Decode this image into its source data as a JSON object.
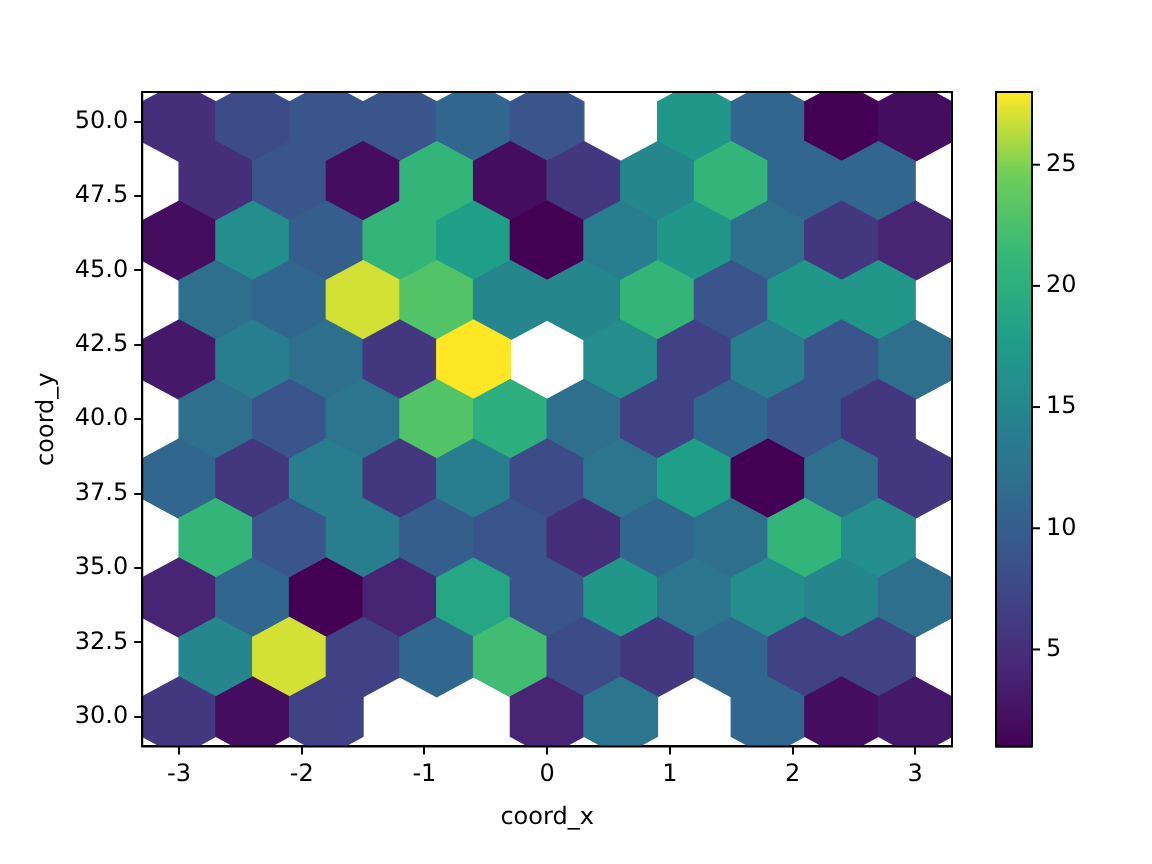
{
  "chart_data": {
    "type": "scatter",
    "xlabel": "coord_x",
    "ylabel": "coord_y",
    "xlim": [
      -3.3,
      3.3
    ],
    "ylim": [
      29,
      51
    ],
    "xticks": [
      -3,
      -2,
      -1,
      0,
      1,
      2,
      3
    ],
    "yticks": [
      {
        "value": 30,
        "label": "30.0"
      },
      {
        "value": 32.5,
        "label": "32.5"
      },
      {
        "value": 35,
        "label": "35.0"
      },
      {
        "value": 37.5,
        "label": "37.5"
      },
      {
        "value": 40,
        "label": "40.0"
      },
      {
        "value": 42.5,
        "label": "42.5"
      },
      {
        "value": 45,
        "label": "45.0"
      },
      {
        "value": 47.5,
        "label": "47.5"
      },
      {
        "value": 50,
        "label": "50.0"
      }
    ],
    "clim": [
      1,
      28
    ],
    "cticks": [
      5,
      10,
      15,
      20,
      25
    ],
    "grid": false,
    "legend": false,
    "x": [
      -3,
      -2.4,
      -1.8,
      -1.2,
      -0.6,
      0,
      1.2,
      1.8,
      2.4,
      3,
      -2.7,
      -2.1,
      -1.5,
      -0.9,
      -0.3,
      0.3,
      0.9,
      1.5,
      2.1,
      2.7,
      -3,
      -2.4,
      -1.8,
      -1.2,
      -0.6,
      0,
      0.6,
      1.2,
      1.8,
      2.4,
      3,
      -2.7,
      -2.1,
      -1.5,
      -0.9,
      -0.3,
      0.3,
      0.9,
      1.5,
      2.1,
      2.7,
      -3,
      -2.4,
      -1.8,
      -1.2,
      -0.6,
      0.6,
      1.2,
      1.8,
      2.4,
      3,
      -2.7,
      -2.1,
      -1.5,
      -0.9,
      -0.3,
      0.3,
      0.9,
      1.5,
      2.1,
      2.7,
      -3,
      -2.4,
      -1.8,
      -1.2,
      -0.6,
      0,
      0.6,
      1.2,
      1.8,
      2.4,
      3,
      -2.7,
      -2.1,
      -1.5,
      -0.9,
      -0.3,
      0.3,
      0.9,
      1.5,
      2.1,
      2.7,
      -3,
      -2.4,
      -1.8,
      -1.2,
      -0.6,
      0,
      0.6,
      1.2,
      1.8,
      2.4,
      3,
      -2.7,
      -2.1,
      -1.5,
      -0.9,
      -0.3,
      0.3,
      0.9,
      1.5,
      2.1,
      2.7,
      -3,
      -2.4,
      -1.8,
      0,
      0.6,
      1.8,
      2.4,
      3
    ],
    "values": [
      50,
      50,
      50,
      50,
      50,
      50,
      50,
      50,
      50,
      50,
      48,
      48,
      48,
      48,
      48,
      48,
      48,
      48,
      48,
      48,
      46,
      46,
      46,
      46,
      46,
      46,
      46,
      46,
      46,
      46,
      46,
      44,
      44,
      44,
      44,
      44,
      44,
      44,
      44,
      44,
      44,
      42,
      42,
      42,
      42,
      42,
      42,
      42,
      42,
      42,
      42,
      40,
      40,
      40,
      40,
      40,
      40,
      40,
      40,
      40,
      40,
      38,
      38,
      38,
      38,
      38,
      38,
      38,
      38,
      38,
      38,
      38,
      36,
      36,
      36,
      36,
      36,
      36,
      36,
      36,
      36,
      36,
      34,
      34,
      34,
      34,
      34,
      34,
      34,
      34,
      34,
      34,
      34,
      32,
      32,
      32,
      32,
      32,
      32,
      32,
      32,
      32,
      32,
      30,
      30,
      30,
      30,
      30,
      30,
      30,
      30
    ],
    "cvalues": [
      5,
      8,
      9,
      9,
      11,
      9,
      17,
      11,
      1,
      2,
      5,
      9,
      2,
      21,
      2,
      6,
      15,
      21,
      11,
      11,
      2,
      16,
      10,
      21,
      18,
      1,
      14,
      17,
      12,
      6,
      4,
      12,
      11,
      27,
      23,
      15,
      15,
      21,
      9,
      17,
      17,
      3,
      14,
      12,
      6,
      28,
      16,
      7,
      14,
      9,
      12,
      12,
      9,
      13,
      23,
      20,
      12,
      7,
      11,
      9,
      6,
      11,
      6,
      14,
      6,
      14,
      8,
      13,
      18,
      1,
      12,
      6,
      21,
      9,
      14,
      10,
      9,
      5,
      11,
      12,
      21,
      16,
      4,
      11,
      1,
      4,
      19,
      9,
      17,
      13,
      16,
      15,
      12,
      15,
      27,
      7,
      11,
      22,
      8,
      6,
      11,
      7,
      7,
      6,
      2,
      7,
      4,
      13,
      11,
      2,
      3
    ]
  }
}
